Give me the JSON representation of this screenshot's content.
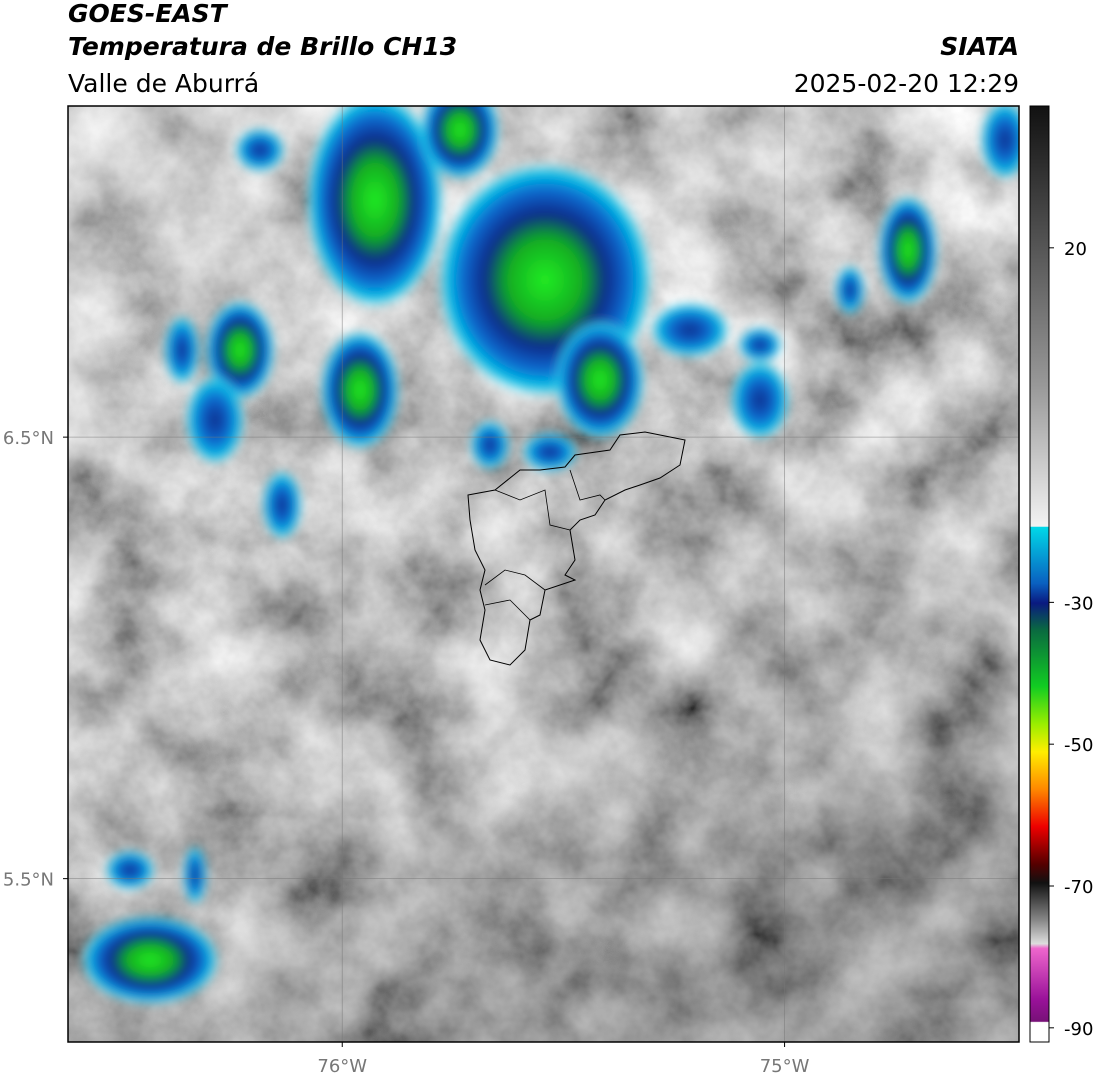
{
  "chart_data": {
    "type": "map",
    "title": "GOES-EAST",
    "subtitle": "Temperatura de Brillo CH13",
    "source": "SIATA",
    "region": "Valle de Aburrá",
    "timestamp": "2025-02-20 12:29",
    "xlim": [
      -76.62,
      -74.47
    ],
    "ylim": [
      5.13,
      7.25
    ],
    "xticks": [
      {
        "value": -76,
        "label": "76°W"
      },
      {
        "value": -75,
        "label": "75°W"
      }
    ],
    "yticks": [
      {
        "value": 6.5,
        "label": "6.5°N"
      },
      {
        "value": 5.5,
        "label": "5.5°N"
      }
    ],
    "grid": true,
    "colorbar": {
      "lim": [
        -92,
        40
      ],
      "ticks": [
        20,
        -30,
        -50,
        -70,
        -90
      ]
    }
  }
}
